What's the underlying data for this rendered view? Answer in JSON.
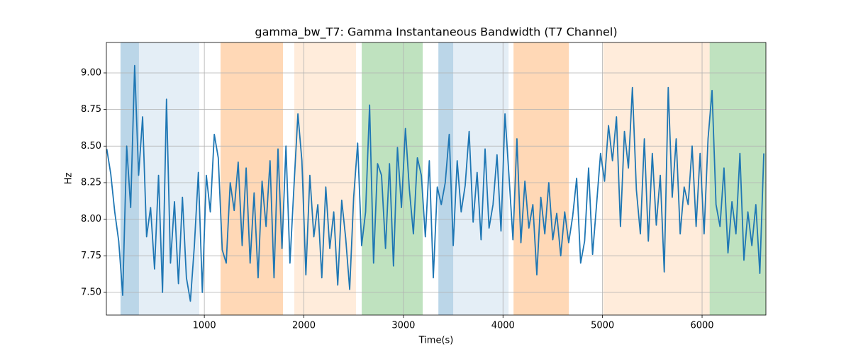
{
  "chart_data": {
    "type": "line",
    "title": "gamma_bw_T7: Gamma Instantaneous Bandwidth (T7 Channel)",
    "x_label": "Time(s)",
    "y_label": "Hz",
    "xlim": [
      16,
      6641
    ],
    "ylim": [
      7.345,
      9.208
    ],
    "xticks": [
      1000,
      2000,
      3000,
      4000,
      5000,
      6000
    ],
    "yticks": [
      {
        "value": 7.5,
        "label": "7.50"
      },
      7.75,
      {
        "value": 8.0,
        "label": "8.00"
      },
      8.25,
      {
        "value": 8.5,
        "label": "8.50"
      },
      8.75,
      {
        "value": 9.0,
        "label": "9.00"
      }
    ],
    "grid": true,
    "spans": [
      {
        "start": 158,
        "end": 343,
        "color": "#1f77b4",
        "opacity": 0.3
      },
      {
        "start": 343,
        "end": 949,
        "color": "#1f77b4",
        "opacity": 0.12
      },
      {
        "start": 1163,
        "end": 1790,
        "color": "#ff7f0e",
        "opacity": 0.3
      },
      {
        "start": 1904,
        "end": 2524,
        "color": "#ff7f0e",
        "opacity": 0.15
      },
      {
        "start": 2581,
        "end": 3194,
        "color": "#2ca02c",
        "opacity": 0.3
      },
      {
        "start": 3351,
        "end": 3500,
        "color": "#1f77b4",
        "opacity": 0.3
      },
      {
        "start": 3500,
        "end": 4056,
        "color": "#1f77b4",
        "opacity": 0.12
      },
      {
        "start": 4106,
        "end": 4662,
        "color": "#ff7f0e",
        "opacity": 0.3
      },
      {
        "start": 5007,
        "end": 6076,
        "color": "#ff7f0e",
        "opacity": 0.15
      },
      {
        "start": 6076,
        "end": 6641,
        "color": "#2ca02c",
        "opacity": 0.3
      }
    ],
    "x": [
      20,
      60,
      100,
      140,
      180,
      220,
      260,
      300,
      340,
      380,
      420,
      460,
      500,
      540,
      580,
      620,
      660,
      700,
      740,
      780,
      820,
      860,
      900,
      940,
      980,
      1020,
      1060,
      1100,
      1140,
      1180,
      1220,
      1260,
      1300,
      1340,
      1380,
      1420,
      1460,
      1500,
      1540,
      1580,
      1620,
      1660,
      1700,
      1740,
      1780,
      1820,
      1860,
      1900,
      1940,
      1980,
      2020,
      2060,
      2100,
      2140,
      2180,
      2220,
      2260,
      2300,
      2340,
      2380,
      2420,
      2460,
      2500,
      2540,
      2580,
      2620,
      2660,
      2700,
      2740,
      2780,
      2820,
      2860,
      2900,
      2940,
      2980,
      3020,
      3060,
      3100,
      3140,
      3180,
      3220,
      3260,
      3300,
      3340,
      3380,
      3420,
      3460,
      3500,
      3540,
      3580,
      3620,
      3660,
      3700,
      3740,
      3780,
      3820,
      3860,
      3900,
      3940,
      3980,
      4020,
      4060,
      4100,
      4140,
      4180,
      4220,
      4260,
      4300,
      4340,
      4380,
      4420,
      4460,
      4500,
      4540,
      4580,
      4620,
      4660,
      4700,
      4740,
      4780,
      4820,
      4860,
      4900,
      4940,
      4980,
      5020,
      5060,
      5100,
      5140,
      5180,
      5220,
      5260,
      5300,
      5340,
      5380,
      5420,
      5460,
      5500,
      5540,
      5580,
      5620,
      5660,
      5700,
      5740,
      5780,
      5820,
      5860,
      5900,
      5940,
      5980,
      6020,
      6060,
      6100,
      6140,
      6180,
      6220,
      6260,
      6300,
      6340,
      6380,
      6420,
      6460,
      6500,
      6540,
      6580,
      6620
    ],
    "series": [
      {
        "color": "#1f77b4",
        "values": [
          8.48,
          8.31,
          8.05,
          7.85,
          7.48,
          8.5,
          8.08,
          9.05,
          8.3,
          8.7,
          7.88,
          8.08,
          7.66,
          8.3,
          7.5,
          8.82,
          7.7,
          8.12,
          7.56,
          8.15,
          7.6,
          7.44,
          7.82,
          8.32,
          7.5,
          8.3,
          8.05,
          8.58,
          8.42,
          7.79,
          7.7,
          8.25,
          8.06,
          8.39,
          7.82,
          8.35,
          7.7,
          8.18,
          7.6,
          8.26,
          7.95,
          8.4,
          7.6,
          8.48,
          7.8,
          8.5,
          7.7,
          8.22,
          8.72,
          8.4,
          7.62,
          8.3,
          7.88,
          8.1,
          7.6,
          8.22,
          7.8,
          8.05,
          7.55,
          8.13,
          7.87,
          7.52,
          8.15,
          8.52,
          7.82,
          8.05,
          8.78,
          7.7,
          8.38,
          8.3,
          7.8,
          8.38,
          7.68,
          8.49,
          8.08,
          8.62,
          8.2,
          7.9,
          8.42,
          8.3,
          7.88,
          8.4,
          7.6,
          8.22,
          8.1,
          8.25,
          8.58,
          7.82,
          8.4,
          8.05,
          8.23,
          8.6,
          7.98,
          8.32,
          7.86,
          8.48,
          7.94,
          8.1,
          8.44,
          7.92,
          8.72,
          8.3,
          7.86,
          8.55,
          7.84,
          8.26,
          7.94,
          8.1,
          7.62,
          8.15,
          7.9,
          8.25,
          7.86,
          8.04,
          7.75,
          8.05,
          7.84,
          8.02,
          8.28,
          7.7,
          7.85,
          8.35,
          7.76,
          8.1,
          8.45,
          8.26,
          8.64,
          8.4,
          8.7,
          7.95,
          8.6,
          8.35,
          8.9,
          8.2,
          7.9,
          8.55,
          7.85,
          8.45,
          7.96,
          8.3,
          7.64,
          8.9,
          8.15,
          8.55,
          7.9,
          8.22,
          8.1,
          8.5,
          7.95,
          8.45,
          7.9,
          8.55,
          8.88,
          8.1,
          7.95,
          8.35,
          7.77,
          8.12,
          7.9,
          8.45,
          7.72,
          8.05,
          7.82,
          8.1,
          7.63,
          8.45
        ]
      }
    ]
  }
}
